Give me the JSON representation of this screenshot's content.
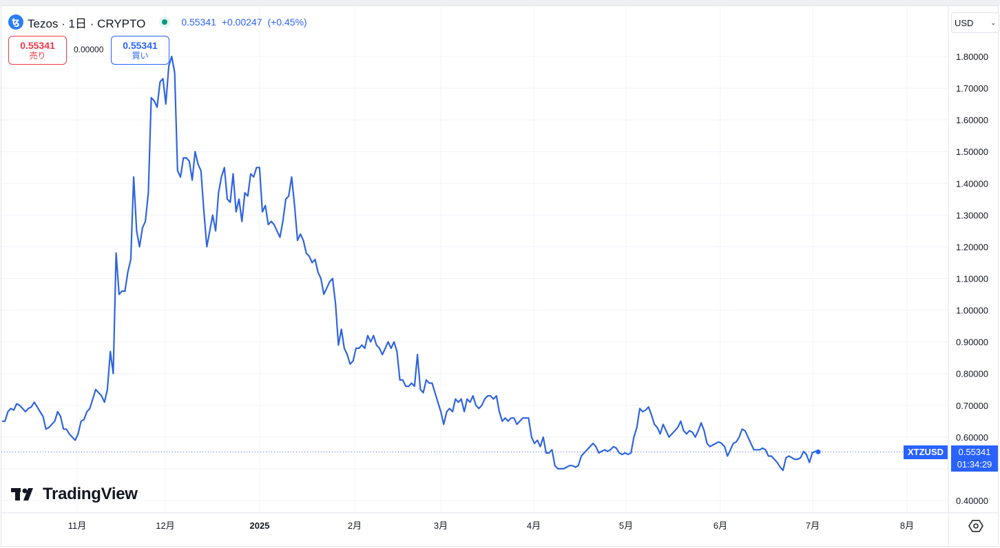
{
  "header": {
    "coin_icon": "tezos-icon",
    "symbol_title": "Tezos · 1日 · CRYPTO",
    "market_status": "open",
    "last": "0.55341",
    "change": "+0.00247",
    "change_pct": "(+0.45%)"
  },
  "trade": {
    "sell_price": "0.55341",
    "sell_label": "売り",
    "spread": "0.00000",
    "buy_price": "0.55341",
    "buy_label": "買い"
  },
  "currency_select": "USD",
  "price_label": {
    "symbol": "XTZUSD",
    "price": "0.55341",
    "countdown": "01:34:29"
  },
  "branding": "TradingView",
  "colors": {
    "line": "#2e64e0",
    "accent": "#2962ff",
    "sell": "#f23645",
    "grid": "#f0f3fa"
  },
  "chart_data": {
    "type": "line",
    "series": [
      {
        "values": [
          0.65,
          0.65,
          0.68,
          0.69,
          0.685,
          0.705,
          0.7,
          0.69,
          0.68,
          0.69,
          0.695,
          0.71,
          0.695,
          0.68,
          0.665,
          0.625,
          0.63,
          0.64,
          0.65,
          0.68,
          0.665,
          0.625,
          0.625,
          0.61,
          0.6,
          0.59,
          0.61,
          0.65,
          0.655,
          0.68,
          0.69,
          0.72,
          0.75,
          0.74,
          0.73,
          0.71,
          0.75,
          0.87,
          0.8,
          1.18,
          1.05,
          1.06,
          1.06,
          1.12,
          1.16,
          1.42,
          1.25,
          1.2,
          1.26,
          1.28,
          1.37,
          1.67,
          1.66,
          1.64,
          1.72,
          1.73,
          1.65,
          1.77,
          1.8,
          1.75,
          1.44,
          1.42,
          1.48,
          1.48,
          1.47,
          1.41,
          1.5,
          1.46,
          1.44,
          1.31,
          1.2,
          1.25,
          1.3,
          1.25,
          1.37,
          1.42,
          1.45,
          1.35,
          1.34,
          1.43,
          1.31,
          1.35,
          1.28,
          1.37,
          1.36,
          1.43,
          1.42,
          1.45,
          1.45,
          1.31,
          1.33,
          1.27,
          1.28,
          1.27,
          1.25,
          1.23,
          1.28,
          1.35,
          1.36,
          1.42,
          1.33,
          1.22,
          1.24,
          1.22,
          1.18,
          1.17,
          1.15,
          1.16,
          1.12,
          1.1,
          1.05,
          1.07,
          1.09,
          1.1,
          1.02,
          0.89,
          0.94,
          0.88,
          0.86,
          0.83,
          0.84,
          0.88,
          0.88,
          0.89,
          0.88,
          0.92,
          0.9,
          0.92,
          0.89,
          0.88,
          0.86,
          0.88,
          0.9,
          0.88,
          0.9,
          0.87,
          0.78,
          0.78,
          0.76,
          0.76,
          0.77,
          0.76,
          0.86,
          0.75,
          0.74,
          0.78,
          0.77,
          0.77,
          0.74,
          0.71,
          0.68,
          0.64,
          0.68,
          0.69,
          0.68,
          0.72,
          0.71,
          0.72,
          0.68,
          0.72,
          0.71,
          0.73,
          0.7,
          0.69,
          0.7,
          0.72,
          0.73,
          0.73,
          0.72,
          0.73,
          0.68,
          0.65,
          0.66,
          0.65,
          0.66,
          0.66,
          0.64,
          0.65,
          0.66,
          0.66,
          0.66,
          0.6,
          0.58,
          0.59,
          0.57,
          0.6,
          0.55,
          0.55,
          0.56,
          0.51,
          0.5,
          0.5,
          0.5,
          0.505,
          0.51,
          0.51,
          0.505,
          0.51,
          0.54,
          0.55,
          0.56,
          0.57,
          0.58,
          0.57,
          0.55,
          0.555,
          0.56,
          0.555,
          0.56,
          0.57,
          0.565,
          0.55,
          0.545,
          0.55,
          0.545,
          0.55,
          0.6,
          0.63,
          0.69,
          0.68,
          0.685,
          0.695,
          0.67,
          0.64,
          0.63,
          0.61,
          0.64,
          0.62,
          0.6,
          0.61,
          0.62,
          0.63,
          0.65,
          0.62,
          0.61,
          0.62,
          0.615,
          0.6,
          0.62,
          0.645,
          0.62,
          0.58,
          0.57,
          0.575,
          0.58,
          0.585,
          0.58,
          0.57,
          0.54,
          0.56,
          0.58,
          0.585,
          0.6,
          0.625,
          0.62,
          0.6,
          0.58,
          0.56,
          0.56,
          0.56,
          0.565,
          0.56,
          0.54,
          0.54,
          0.53,
          0.52,
          0.505,
          0.495,
          0.535,
          0.54,
          0.535,
          0.53,
          0.53,
          0.535,
          0.555,
          0.545,
          0.52,
          0.55,
          0.555,
          0.5534
        ]
      }
    ],
    "x_ticks": [
      "11月",
      "12月",
      "2025",
      "2月",
      "3月",
      "4月",
      "5月",
      "6月",
      "7月",
      "8月"
    ],
    "y_ticks": [
      "1.80000",
      "1.70000",
      "1.60000",
      "1.50000",
      "1.40000",
      "1.30000",
      "1.20000",
      "1.10000",
      "1.00000",
      "0.90000",
      "0.80000",
      "0.70000",
      "0.60000",
      "0.40000"
    ],
    "ylim": [
      0.38,
      1.88
    ],
    "grid": true,
    "last_value": 0.55341
  }
}
